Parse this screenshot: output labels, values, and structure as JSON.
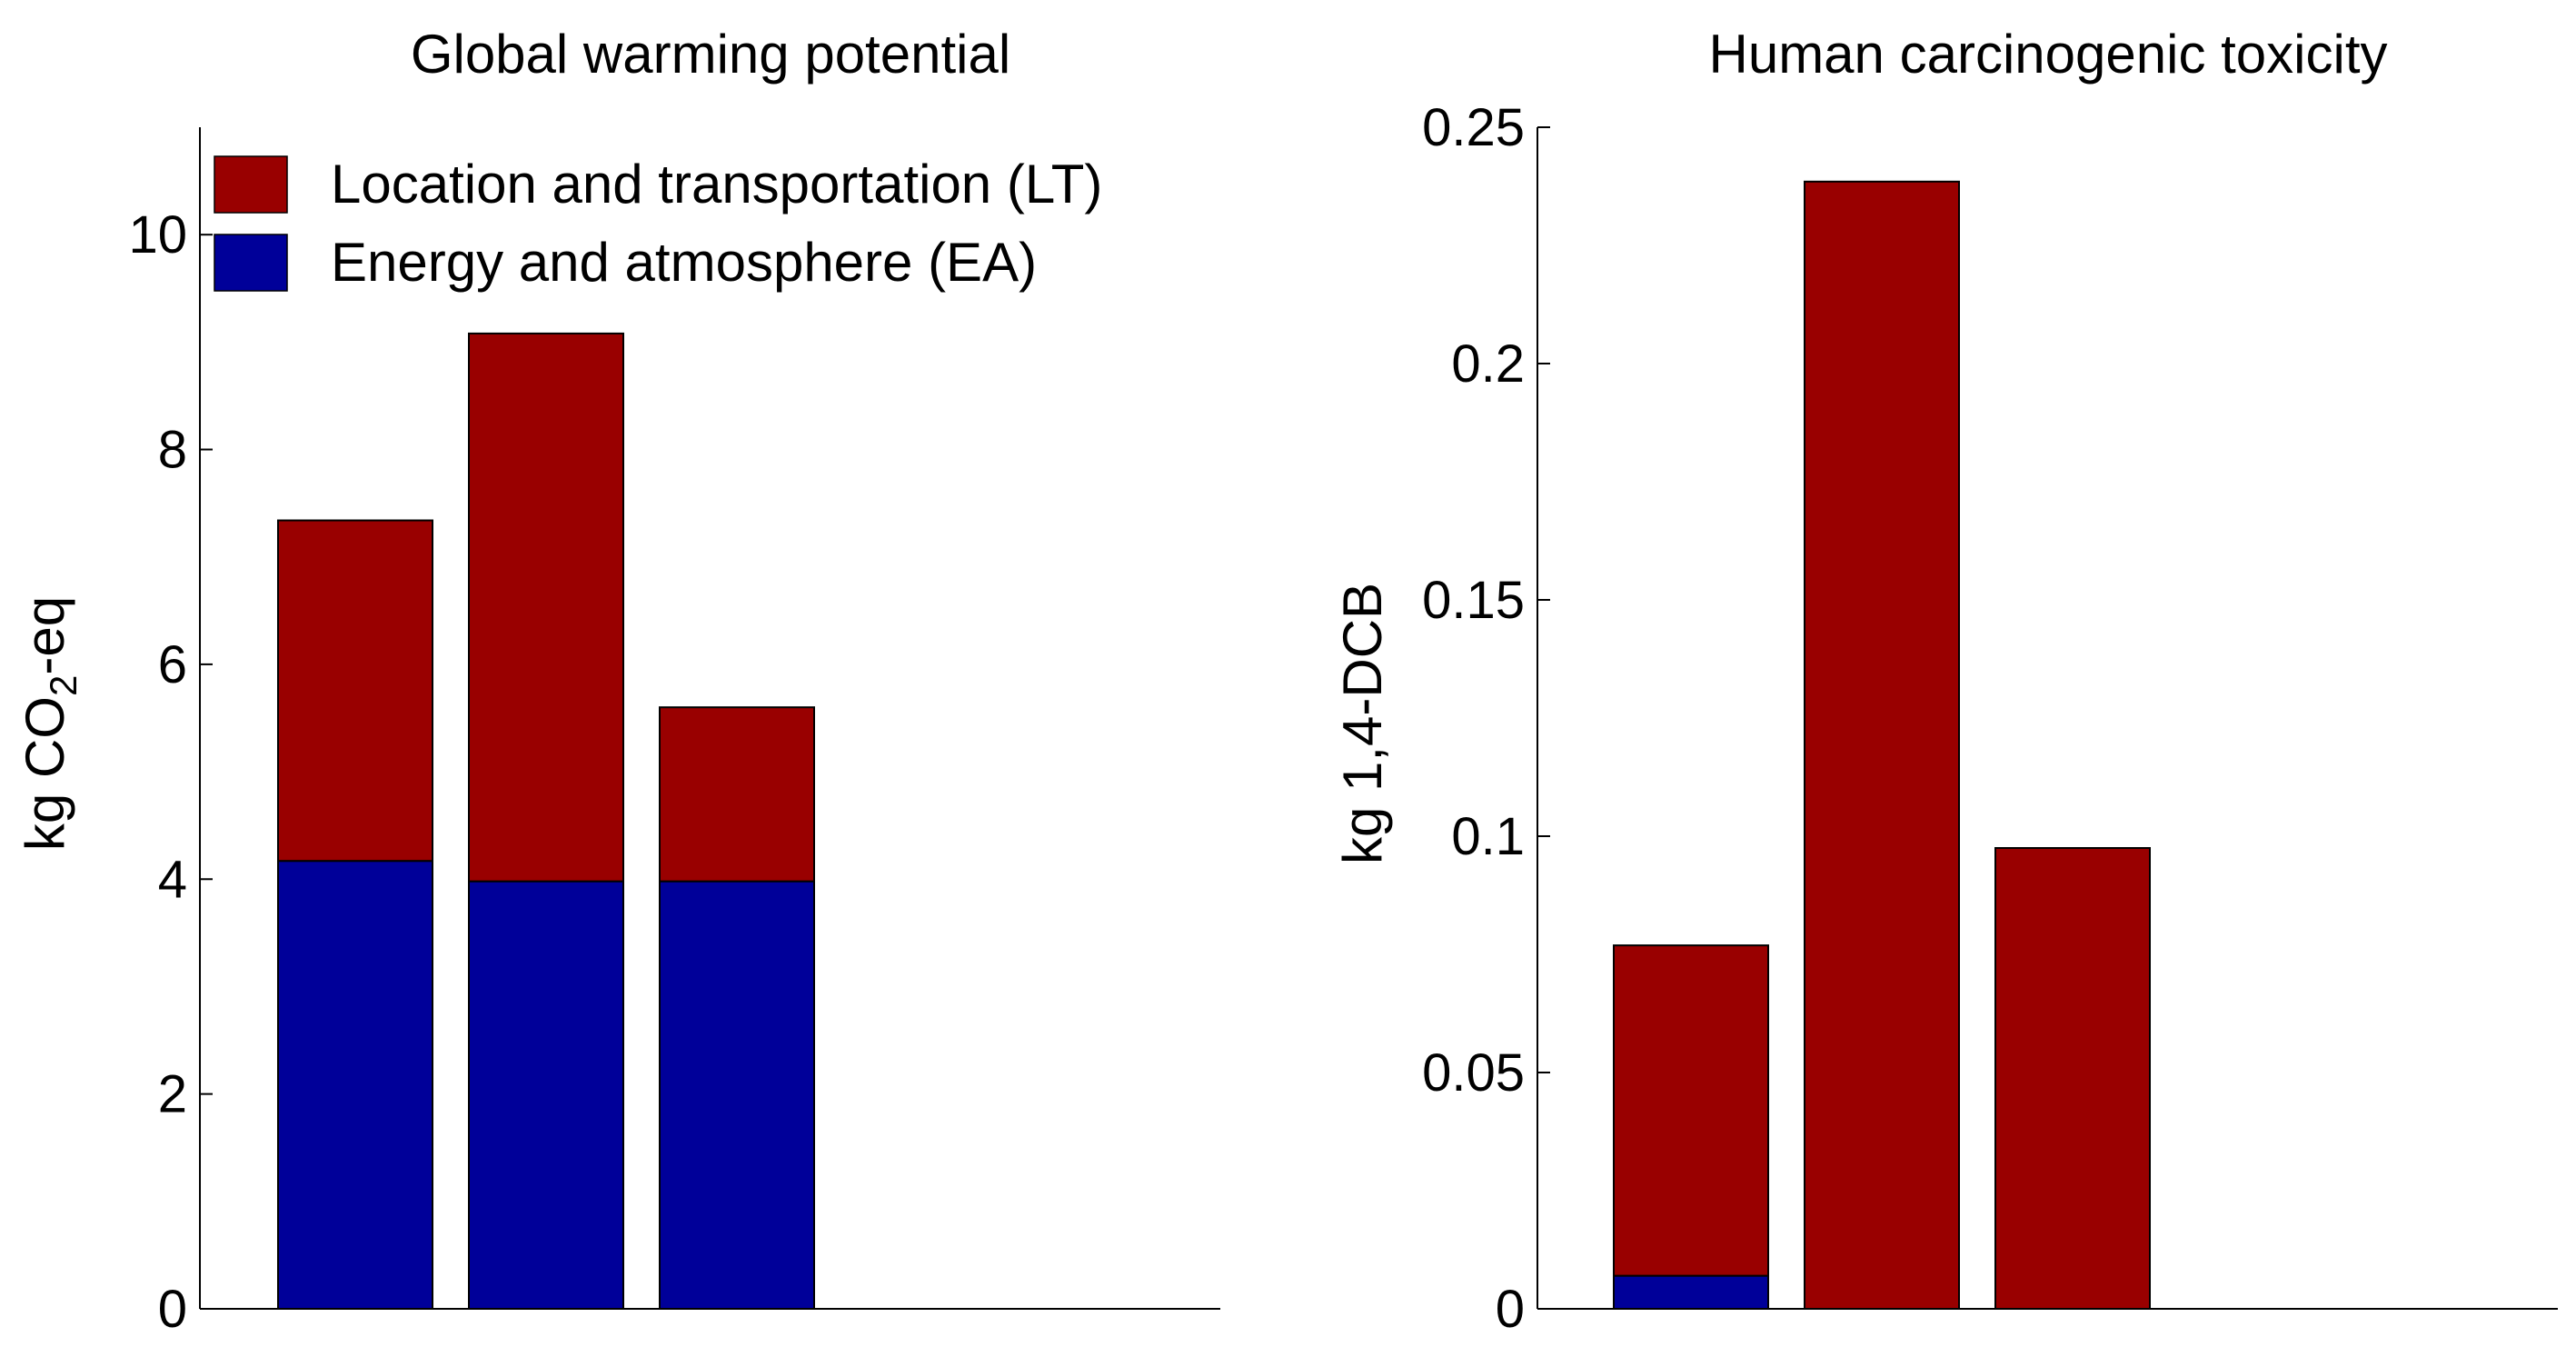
{
  "chart_data": [
    {
      "type": "bar",
      "stacked": true,
      "title": "Global warming potential",
      "ylabel_prefix": "kg CO",
      "ylabel_sub": "2",
      "ylabel_suffix": "-eq",
      "ylim": [
        0,
        11
      ],
      "yticks": [
        0,
        2,
        4,
        6,
        8,
        10
      ],
      "ytick_labels": [
        "0",
        "2",
        "4",
        "6",
        "8",
        "10"
      ],
      "categories": [
        "",
        "",
        ""
      ],
      "series": [
        {
          "name": "Energy and atmosphere (EA)",
          "color": "#000099",
          "values": [
            4.17,
            3.98,
            3.98
          ]
        },
        {
          "name": "Location and transportation (LT)",
          "color": "#990000",
          "values": [
            3.17,
            5.1,
            1.62
          ]
        }
      ],
      "legend": {
        "position": "top-left",
        "entries": [
          {
            "label": "Location and transportation (LT)",
            "color": "#990000"
          },
          {
            "label": "Energy and atmosphere (EA)",
            "color": "#000099"
          }
        ]
      }
    },
    {
      "type": "bar",
      "stacked": true,
      "title": "Human carcinogenic toxicity",
      "ylabel": "kg 1,4-DCB",
      "ylim": [
        0,
        0.25
      ],
      "yticks": [
        0,
        0.05,
        0.1,
        0.15,
        0.2,
        0.25
      ],
      "ytick_labels": [
        "0",
        "0.05",
        "0.1",
        "0.15",
        "0.2",
        "0.25"
      ],
      "categories": [
        "",
        "",
        ""
      ],
      "series": [
        {
          "name": "Energy and atmosphere (EA)",
          "color": "#000099",
          "values": [
            0.007,
            0.0,
            0.0
          ]
        },
        {
          "name": "Location and transportation (LT)",
          "color": "#990000",
          "values": [
            0.0699,
            0.2385,
            0.0975
          ]
        }
      ]
    }
  ]
}
